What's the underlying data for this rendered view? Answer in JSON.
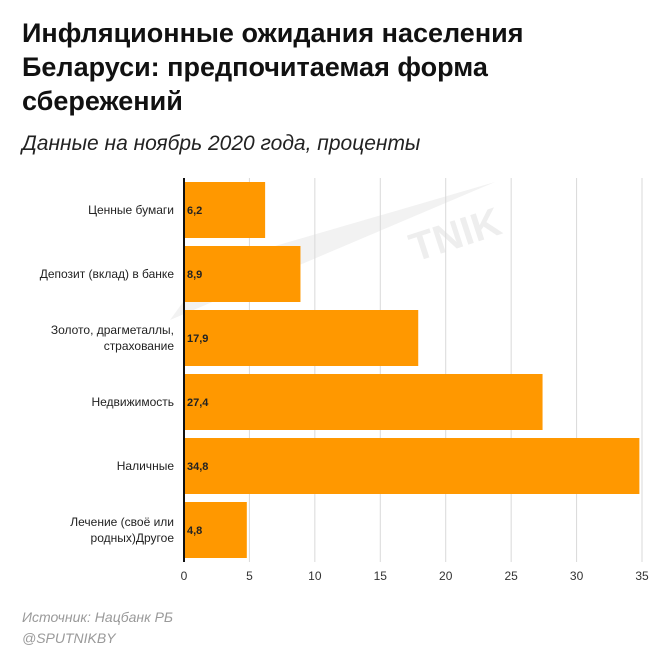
{
  "header": {
    "title": "Инфляционные ожидания населения Беларуси: предпочитаемая форма сбережений",
    "subtitle": "Данные на ноябрь 2020 года, проценты"
  },
  "footer": {
    "source": "Источник: Нацбанк РБ",
    "handle": "@SPUTNIKBY"
  },
  "colors": {
    "bar": "#ff9800",
    "grid": "#d9d9d9",
    "axis": "#111111"
  },
  "chart_data": {
    "type": "bar",
    "orientation": "horizontal",
    "categories": [
      [
        "Ценные бумаги"
      ],
      [
        "Депозит (вклад) в банке"
      ],
      [
        "Золото, драгметаллы,",
        "страхование"
      ],
      [
        "Недвижимость"
      ],
      [
        "Наличные"
      ],
      [
        "Лечение (своё или",
        "родных)Другое"
      ]
    ],
    "values": [
      6.2,
      8.9,
      17.9,
      27.4,
      34.8,
      4.8
    ],
    "value_labels": [
      "6,2",
      "8,9",
      "17,9",
      "27,4",
      "34,8",
      "4,8"
    ],
    "xlim": [
      0,
      35
    ],
    "xticks": [
      0,
      5,
      10,
      15,
      20,
      25,
      30,
      35
    ],
    "grid": true
  }
}
